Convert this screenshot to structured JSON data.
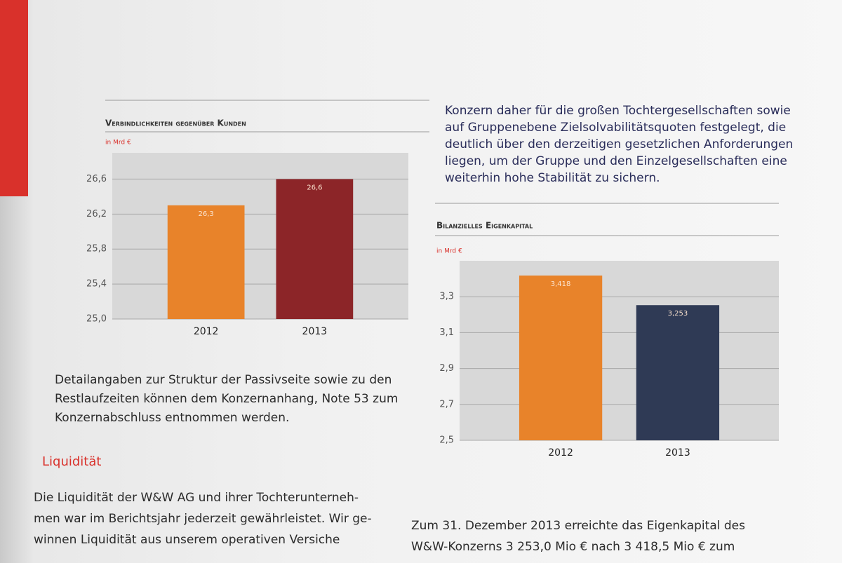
{
  "chart_data": [
    {
      "type": "bar",
      "title": "Verbindlichkeiten gegenüber Kunden",
      "unit": "in Mrd €",
      "categories": [
        "2012",
        "2013"
      ],
      "values": [
        26.3,
        26.6
      ],
      "value_labels": [
        "26,3",
        "26,6"
      ],
      "colors": [
        "#e8832a",
        "#8c2528"
      ],
      "ylim": [
        25.0,
        26.9
      ],
      "yticks": [
        {
          "value": 25.0,
          "label": "25,0"
        },
        {
          "value": 25.4,
          "label": "25,4"
        },
        {
          "value": 25.8,
          "label": "25,8"
        },
        {
          "value": 26.2,
          "label": "26,2"
        },
        {
          "value": 26.6,
          "label": "26,6"
        }
      ],
      "grid": true
    },
    {
      "type": "bar",
      "title": "Bilanzielles Eigenkapital",
      "unit": "in Mrd €",
      "categories": [
        "2012",
        "2013"
      ],
      "values": [
        3.418,
        3.253
      ],
      "value_labels": [
        "3,418",
        "3,253"
      ],
      "colors": [
        "#e8832a",
        "#2f3a55"
      ],
      "ylim": [
        2.5,
        3.5
      ],
      "yticks": [
        {
          "value": 2.5,
          "label": "2,5"
        },
        {
          "value": 2.7,
          "label": "2,7"
        },
        {
          "value": 2.9,
          "label": "2,9"
        },
        {
          "value": 3.1,
          "label": "3,1"
        },
        {
          "value": 3.3,
          "label": "3,3"
        }
      ],
      "grid": true
    }
  ],
  "left_text": {
    "paragraph1": [
      "Detailangaben zur Struktur der Passivseite sowie zu den",
      "Restlaufzeiten können dem Konzernanhang, Note 53 zum",
      "Konzernabschluss entnommen werden."
    ],
    "heading": "Liquidität",
    "paragraph2": [
      "Die Liquidität der W&W AG und ihrer Tochterunterneh-",
      "men war im Berichtsjahr jederzeit gewährleistet. Wir ge-",
      "winnen Liquidität aus unserem operativen Versiche"
    ]
  },
  "right_text": {
    "paragraph1": [
      "Konzern daher für die großen Tochtergesellschaften sowie",
      "auf Gruppenebene Zielsolvabilitätsquoten festgelegt, die",
      "deutlich über den derzeitigen gesetzlichen Anforderungen",
      "liegen, um der Gruppe und den Einzelgesellschaften eine",
      "weiterhin hohe Stabilität zu sichern."
    ],
    "paragraph2": [
      "Zum 31. Dezember 2013 erreichte das Eigenkapital des",
      "W&W-Konzerns 3 253,0 Mio € nach 3 418,5 Mio € zum"
    ]
  }
}
